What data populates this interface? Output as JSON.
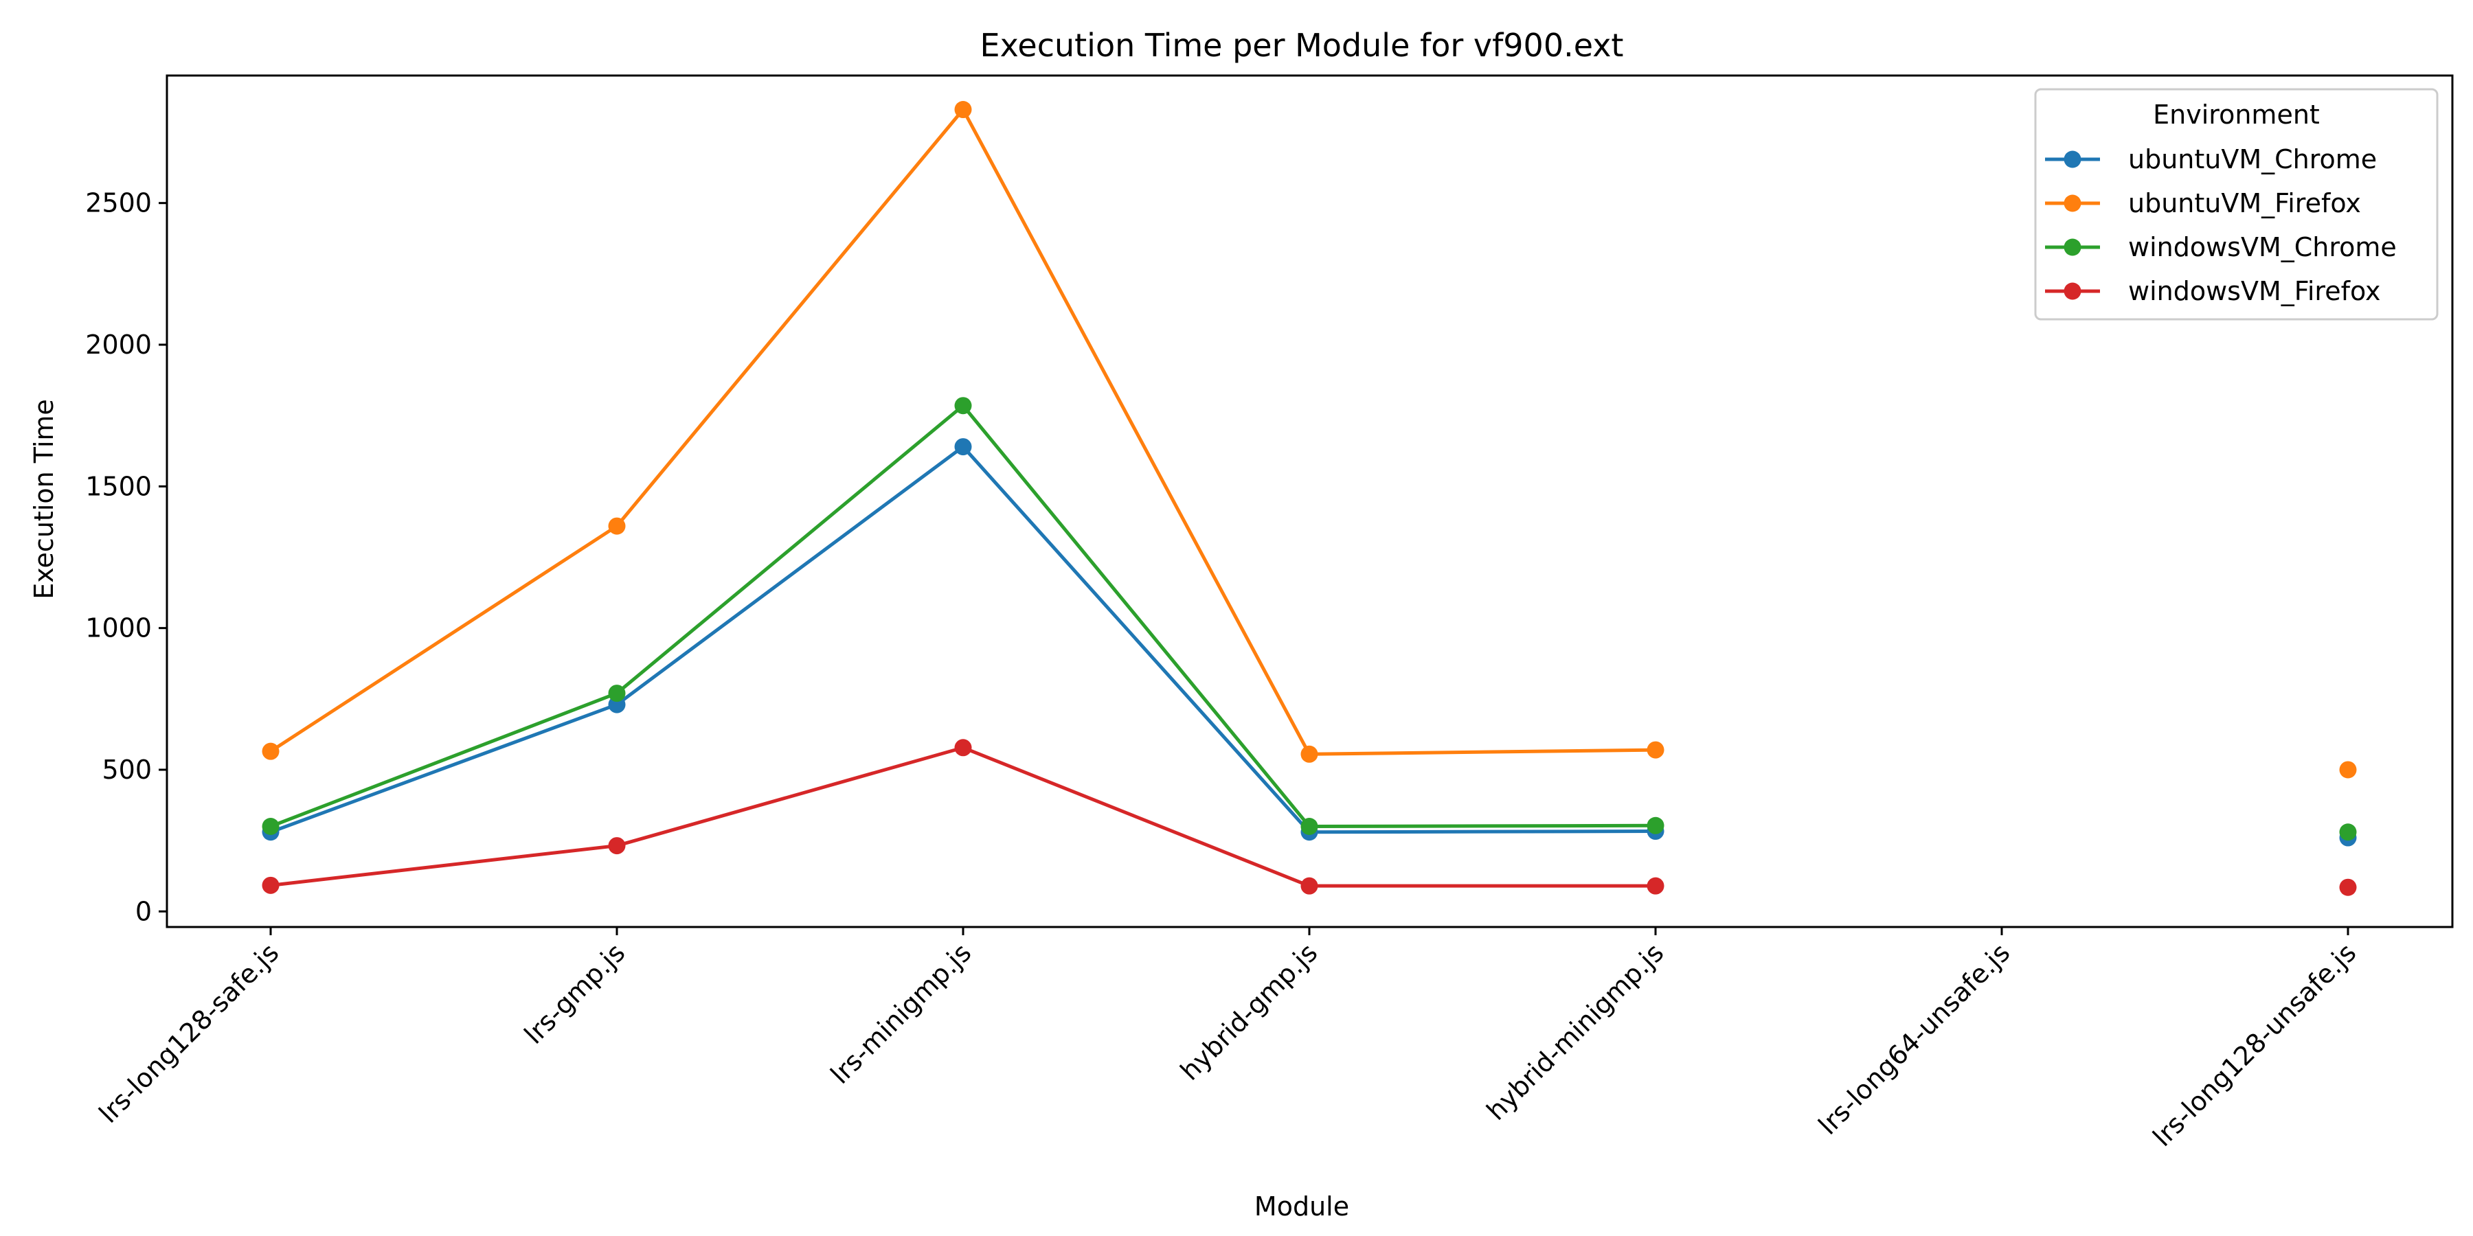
{
  "chart_data": {
    "type": "line",
    "title": "Execution Time per Module for vf900.ext",
    "xlabel": "Module",
    "ylabel": "Execution Time",
    "categories": [
      "lrs-long128-safe.js",
      "lrs-gmp.js",
      "lrs-minigmp.js",
      "hybrid-gmp.js",
      "hybrid-minigmp.js",
      "lrs-long64-unsafe.js",
      "lrs-long128-unsafe.js"
    ],
    "ylim": [
      -55,
      2950
    ],
    "yticks": [
      0,
      500,
      1000,
      1500,
      2000,
      2500
    ],
    "grid": false,
    "legend": {
      "title": "Environment",
      "position": "top-right"
    },
    "series": [
      {
        "name": "ubuntuVM_Chrome",
        "color": "#1f77b4",
        "values": [
          280,
          730,
          1640,
          280,
          283,
          null,
          260
        ]
      },
      {
        "name": "ubuntuVM_Firefox",
        "color": "#ff7f0e",
        "values": [
          565,
          1360,
          2830,
          555,
          570,
          null,
          500
        ]
      },
      {
        "name": "windowsVM_Chrome",
        "color": "#2ca02c",
        "values": [
          300,
          770,
          1785,
          300,
          303,
          null,
          280
        ]
      },
      {
        "name": "windowsVM_Firefox",
        "color": "#d62728",
        "values": [
          92,
          232,
          578,
          90,
          90,
          null,
          85
        ]
      }
    ]
  }
}
